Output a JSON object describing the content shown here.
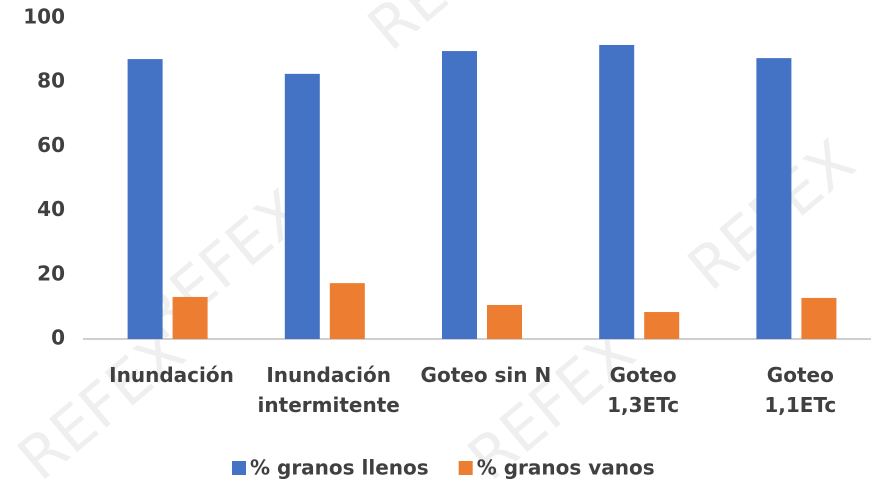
{
  "chart_data": {
    "type": "bar",
    "categories": [
      "Inundación",
      "Inundación\nintermitente",
      "Goteo sin N",
      "Goteo\n1,3ETc",
      "Goteo\n1,1ETc"
    ],
    "series": [
      {
        "name": "% granos llenos",
        "color": "#4472c4",
        "values": [
          87.2,
          82.6,
          89.7,
          91.6,
          87.5
        ]
      },
      {
        "name": "% granos vanos",
        "color": "#ed7d31",
        "values": [
          13.1,
          17.4,
          10.6,
          8.4,
          12.8
        ]
      }
    ],
    "ylim": [
      0,
      100
    ],
    "yticks": [
      0,
      20,
      40,
      60,
      80,
      100
    ],
    "grid": false,
    "legend": "bottom",
    "watermark": "REFEX"
  }
}
